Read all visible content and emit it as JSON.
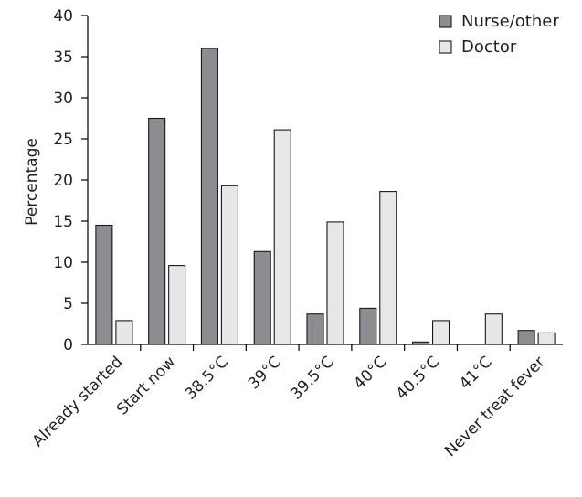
{
  "chart_data": {
    "type": "bar",
    "title": "",
    "xlabel": "",
    "ylabel": "Percentage",
    "ylim": [
      0,
      40
    ],
    "yticks": [
      0,
      5,
      10,
      15,
      20,
      25,
      30,
      35,
      40
    ],
    "grid": false,
    "legend_position": "top-right",
    "categories": [
      "Already started",
      "Start now",
      "38.5°C",
      "39°C",
      "39.5°C",
      "40°C",
      "40.5°C",
      "41°C",
      "Never treat fever"
    ],
    "series": [
      {
        "name": "Nurse/other",
        "color": "#8c8d91",
        "values": [
          14.5,
          27.5,
          36.0,
          11.3,
          3.7,
          4.4,
          0.3,
          0.0,
          1.7
        ]
      },
      {
        "name": "Doctor",
        "color": "#e6e7e8",
        "values": [
          2.9,
          9.6,
          19.3,
          26.1,
          14.9,
          18.6,
          2.9,
          3.7,
          1.4
        ]
      }
    ]
  }
}
